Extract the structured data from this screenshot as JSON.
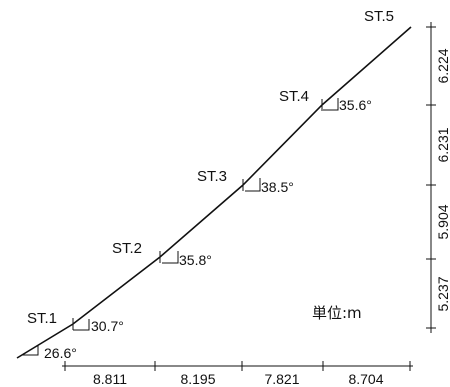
{
  "stations": [
    {
      "id": "st1",
      "label": "ST.1",
      "angle": "30.7°"
    },
    {
      "id": "st2",
      "label": "ST.2",
      "angle": "35.8°"
    },
    {
      "id": "st3",
      "label": "ST.3",
      "angle": "38.5°"
    },
    {
      "id": "st4",
      "label": "ST.4",
      "angle": "35.6°"
    },
    {
      "id": "st5",
      "label": "ST.5"
    }
  ],
  "start_angle": "26.6°",
  "horizontal_distances": [
    "8.811",
    "8.195",
    "7.821",
    "8.704"
  ],
  "vertical_distances": [
    "5.237",
    "5.904",
    "6.231",
    "6.224"
  ],
  "unit_label": "単位:m"
}
